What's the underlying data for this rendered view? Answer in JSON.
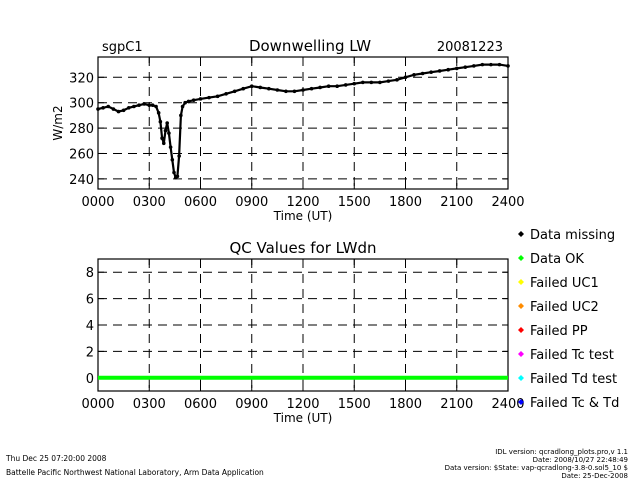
{
  "header": {
    "site": "sgpC1",
    "date": "20081223"
  },
  "chart_data": [
    {
      "type": "scatter",
      "title": "Downwelling LW",
      "xlabel": "Time (UT)",
      "ylabel": "W/m2",
      "xlim": [
        0,
        2400
      ],
      "ylim": [
        232,
        336
      ],
      "xticks": [
        0,
        300,
        600,
        900,
        1200,
        1500,
        1800,
        2100,
        2400
      ],
      "xtick_labels": [
        "0000",
        "0300",
        "0600",
        "0900",
        "1200",
        "1500",
        "1800",
        "2100",
        "2400"
      ],
      "yticks": [
        240,
        260,
        280,
        300,
        320
      ],
      "ytick_labels": [
        "240",
        "260",
        "280",
        "300",
        "320"
      ],
      "grid": true,
      "x": [
        0,
        30,
        60,
        90,
        120,
        150,
        180,
        210,
        240,
        270,
        300,
        320,
        340,
        355,
        365,
        375,
        385,
        395,
        405,
        415,
        425,
        435,
        445,
        455,
        465,
        475,
        485,
        495,
        510,
        530,
        560,
        600,
        650,
        700,
        750,
        800,
        850,
        900,
        950,
        1000,
        1050,
        1100,
        1150,
        1200,
        1250,
        1300,
        1350,
        1400,
        1450,
        1500,
        1550,
        1600,
        1650,
        1700,
        1750,
        1800,
        1850,
        1900,
        1950,
        2000,
        2050,
        2100,
        2150,
        2200,
        2250,
        2300,
        2350,
        2400
      ],
      "y": [
        295,
        296,
        297,
        295,
        293,
        294,
        296,
        297,
        298,
        299,
        298,
        298,
        297,
        292,
        285,
        272,
        268,
        278,
        284,
        276,
        265,
        255,
        245,
        241,
        242,
        258,
        290,
        297,
        300,
        301,
        302,
        303,
        304,
        305,
        307,
        309,
        311,
        313,
        312,
        311,
        310,
        309,
        309,
        310,
        311,
        312,
        313,
        313,
        314,
        315,
        316,
        316,
        316,
        317,
        318,
        320,
        322,
        323,
        324,
        325,
        326,
        327,
        328,
        329,
        330,
        330,
        330,
        329
      ]
    },
    {
      "type": "line",
      "title": "QC Values for LWdn",
      "xlabel": "Time (UT)",
      "ylabel": "",
      "xlim": [
        0,
        2400
      ],
      "ylim": [
        -1,
        9
      ],
      "xticks": [
        0,
        300,
        600,
        900,
        1200,
        1500,
        1800,
        2100,
        2400
      ],
      "xtick_labels": [
        "0000",
        "0300",
        "0600",
        "0900",
        "1200",
        "1500",
        "1800",
        "2100",
        "2400"
      ],
      "yticks": [
        0,
        2,
        4,
        6,
        8
      ],
      "ytick_labels": [
        "0",
        "2",
        "4",
        "6",
        "8"
      ],
      "grid": true,
      "series": [
        {
          "name": "Data OK",
          "x": [
            0,
            2400
          ],
          "values": [
            0,
            0
          ],
          "color": "#00ff00"
        }
      ]
    }
  ],
  "legend": {
    "items": [
      {
        "label": "Data missing",
        "color": "#000000"
      },
      {
        "label": "Data OK",
        "color": "#00ff00"
      },
      {
        "label": "Failed UC1",
        "color": "#ffff00"
      },
      {
        "label": "Failed UC2",
        "color": "#ff8c00"
      },
      {
        "label": "Failed PP",
        "color": "#ff0000"
      },
      {
        "label": "Failed Tc test",
        "color": "#ff00ff"
      },
      {
        "label": "Failed Td test",
        "color": "#00ffff"
      },
      {
        "label": "Failed Tc & Td",
        "color": "#0000ff"
      }
    ]
  },
  "footer": {
    "timestamp": "Thu Dec 25 07:20:00 2008",
    "lab": "Battelle Pacific Northwest National Laboratory, Arm Data Application",
    "idl_version": "IDL version: qcradlong_plots.pro,v 1.1",
    "idl_date": "Date: 2008/10/27 22:48:49",
    "data_version": "Data version: $State: vap-qcradlong-3.8-0.sol5_10 $",
    "data_date": "Date: 25-Dec-2008"
  }
}
